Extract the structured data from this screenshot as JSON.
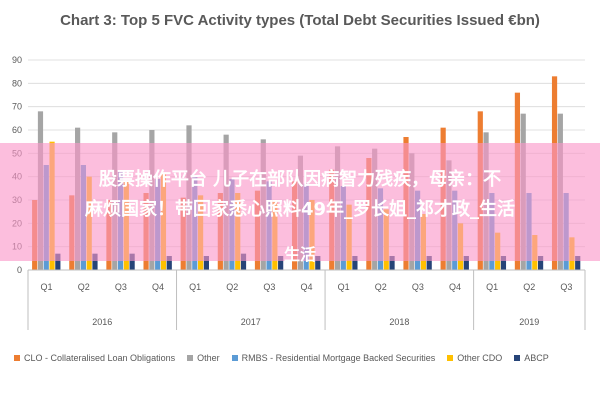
{
  "chart_data": {
    "type": "bar",
    "title": "Chart 3: Top 5 FVC Activity types (Total Debt Securities Issued €bn)",
    "xlabel": "",
    "ylabel": "",
    "ylim": [
      0,
      90
    ],
    "yticks": [
      "0",
      "10",
      "20",
      "30",
      "40",
      "50",
      "60",
      "70",
      "80",
      "90"
    ],
    "grid": true,
    "legend_position": "bottom",
    "categories": [
      "Q1",
      "Q2",
      "Q3",
      "Q4",
      "Q1",
      "Q2",
      "Q3",
      "Q4",
      "Q1",
      "Q2",
      "Q3",
      "Q4",
      "Q1",
      "Q2",
      "Q3"
    ],
    "groups": [
      {
        "label": "2016",
        "count": 4
      },
      {
        "label": "2017",
        "count": 4
      },
      {
        "label": "2018",
        "count": 4
      },
      {
        "label": "2019",
        "count": 3
      }
    ],
    "series": [
      {
        "name": "CLO - Collateralised Loan Obligations",
        "color": "#ED7D31",
        "values": [
          30,
          32,
          30,
          33,
          31,
          33,
          34,
          38,
          43,
          48,
          57,
          61,
          68,
          76,
          83
        ]
      },
      {
        "name": "Other",
        "color": "#A5A5A5",
        "values": [
          68,
          61,
          59,
          60,
          62,
          58,
          56,
          49,
          53,
          52,
          50,
          47,
          59,
          67,
          67
        ]
      },
      {
        "name": "RMBS - Residential Mortgage Backed Securities",
        "color": "#5B9BD5",
        "values": [
          45,
          45,
          42,
          39,
          40,
          39,
          38,
          37,
          36,
          35,
          34,
          34,
          33,
          33,
          33
        ]
      },
      {
        "name": "Other CDO",
        "color": "#FFC000",
        "values": [
          55,
          40,
          38,
          41,
          32,
          33,
          30,
          30,
          28,
          26,
          24,
          20,
          16,
          15,
          14
        ]
      },
      {
        "name": "ABCP",
        "color": "#264478",
        "values": [
          7,
          7,
          7,
          6,
          6,
          7,
          6,
          6,
          6,
          6,
          6,
          6,
          6,
          6,
          6
        ]
      }
    ]
  },
  "overlay": {
    "line1": "股票操作平台 儿子在部队因病智力残疾，母亲：不",
    "line2": "麻烦国家！带回家悉心照料49年_罗长姐_祁才政_生活",
    "line3": "生活"
  }
}
